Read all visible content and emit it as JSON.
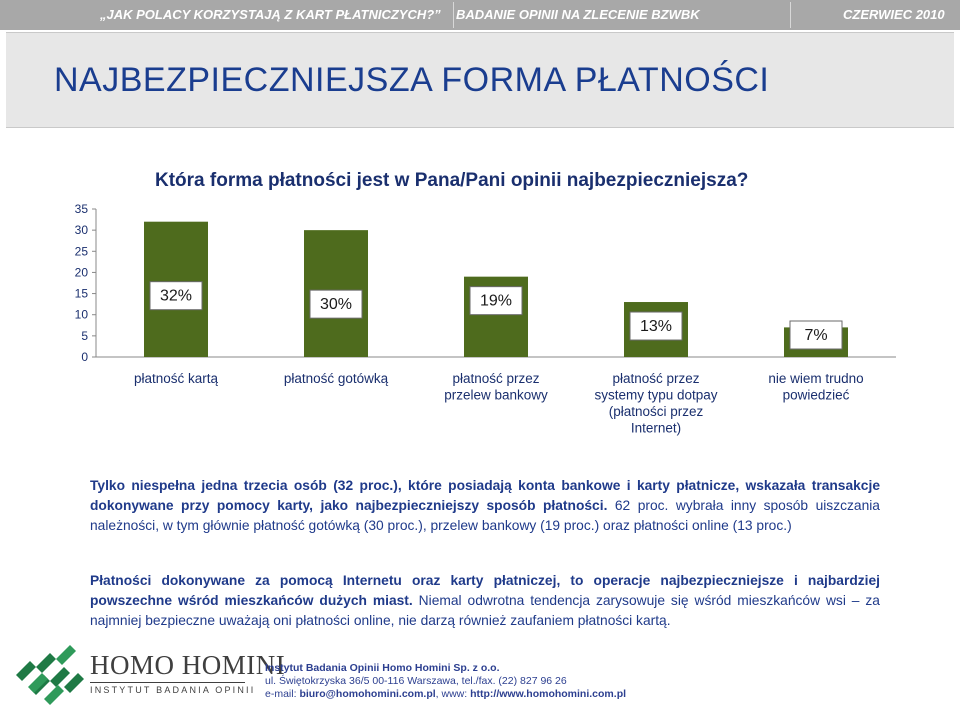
{
  "header": {
    "left_title": "„JAK POLACY KORZYSTAJĄ Z KART PŁATNICZYCH?”",
    "middle_title": "BADANIE OPINII NA ZLECENIE BZWBK",
    "date": "CZERWIEC 2010"
  },
  "slide_title": "NAJBEZPIECZNIEJSZA FORMA PŁATNOŚCI",
  "question": "Która forma płatności jest w Pana/Pani opinii najbezpieczniejsza?",
  "chart_data": {
    "type": "bar",
    "categories": [
      [
        "płatność kartą"
      ],
      [
        "płatność gotówką"
      ],
      [
        "płatność przez",
        "przelew bankowy"
      ],
      [
        "płatność przez",
        "systemy typu dotpay",
        "(płatności przez",
        "Internet)"
      ],
      [
        "nie wiem trudno",
        "powiedzieć"
      ]
    ],
    "values": [
      32,
      30,
      19,
      13,
      7
    ],
    "data_labels": [
      "32%",
      "30%",
      "19%",
      "13%",
      "7%"
    ],
    "yticks": [
      "0",
      "5",
      "10",
      "15",
      "20",
      "25",
      "30",
      "35"
    ],
    "ylim": [
      0,
      35
    ],
    "grid": false,
    "colors": {
      "bar": "#4e6b1d",
      "label_box_border": "#6a6a6a",
      "label_text": "#1a1a1a",
      "category_text": "#1a2f6e"
    }
  },
  "paragraph1": {
    "bold_part": "Tylko niespełna jedna trzecia osób (32 proc.), które posiadają konta bankowe i karty płatnicze, wskazała transakcje dokonywane przy pomocy karty, jako najbezpieczniejszy sposób płatności.",
    "normal_part": "62 proc. wybrała inny sposób uiszczania należności, w tym głównie płatność gotówką (30 proc.), przelew bankowy (19 proc.) oraz płatności online (13 proc.)"
  },
  "paragraph2": {
    "bold_part": "Płatności dokonywane za pomocą Internetu oraz karty płatniczej, to operacje najbezpieczniejsze i najbardziej powszechne wśród mieszkańców dużych miast.",
    "normal_part": "Niemal odwrotna tendencja zarysowuje się wśród mieszkańców wsi – za najmniej bezpieczne uważają oni płatności online, nie darzą również zaufaniem płatności kartą."
  },
  "footer": {
    "brand_name": "HOMO HOMINI",
    "brand_sub": "INSTYTUT BADANIA OPINII",
    "company": "Instytut Badania Opinii Homo Homini Sp. z o.o.",
    "address": "ul. Świętokrzyska 36/5 00-116 Warszawa, tel./fax. (22) 827 96 26",
    "email_label": "e-mail:",
    "email": "biuro@homohomini.com.pl",
    "www_label": ", www:",
    "www": "http://www.homohomini.com.pl",
    "logo_icon": "homo-homini-logo-icon",
    "logo_color": "#1f7a45"
  }
}
